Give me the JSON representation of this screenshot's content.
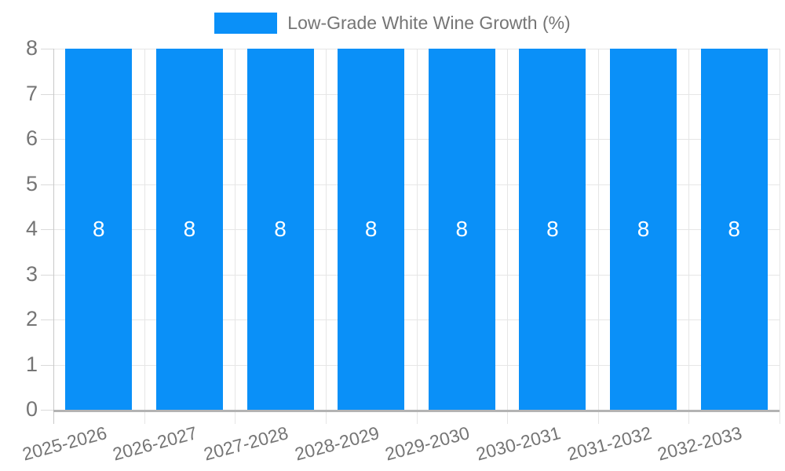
{
  "chart_data": {
    "type": "bar",
    "title": "",
    "legend": {
      "label": "Low-Grade White Wine Growth (%)",
      "position": "top-center"
    },
    "categories": [
      "2025-2026",
      "2026-2027",
      "2027-2028",
      "2028-2029",
      "2029-2030",
      "2030-2031",
      "2031-2032",
      "2032-2033"
    ],
    "series": [
      {
        "name": "Low-Grade White Wine Growth (%)",
        "color": "#0a90f8",
        "values": [
          8,
          8,
          8,
          8,
          8,
          8,
          8,
          8
        ],
        "data_labels": [
          "8",
          "8",
          "8",
          "8",
          "8",
          "8",
          "8",
          "8"
        ]
      }
    ],
    "xlabel": "",
    "ylabel": "",
    "ylim": [
      0,
      8
    ],
    "yticks": [
      0,
      1,
      2,
      3,
      4,
      5,
      6,
      7,
      8
    ],
    "grid": true,
    "x_label_rotation_deg": -15
  },
  "colors": {
    "bar": "#0a90f8",
    "axis_text": "#757575",
    "legend_text": "#757575",
    "bar_label_text": "#ffffff",
    "gridline": "#e6e6e6",
    "tick_line": "#dadada",
    "left_axis_line": "#c9c9c9",
    "bottom_axis_line": "#b3b3b3",
    "background": "#ffffff"
  }
}
